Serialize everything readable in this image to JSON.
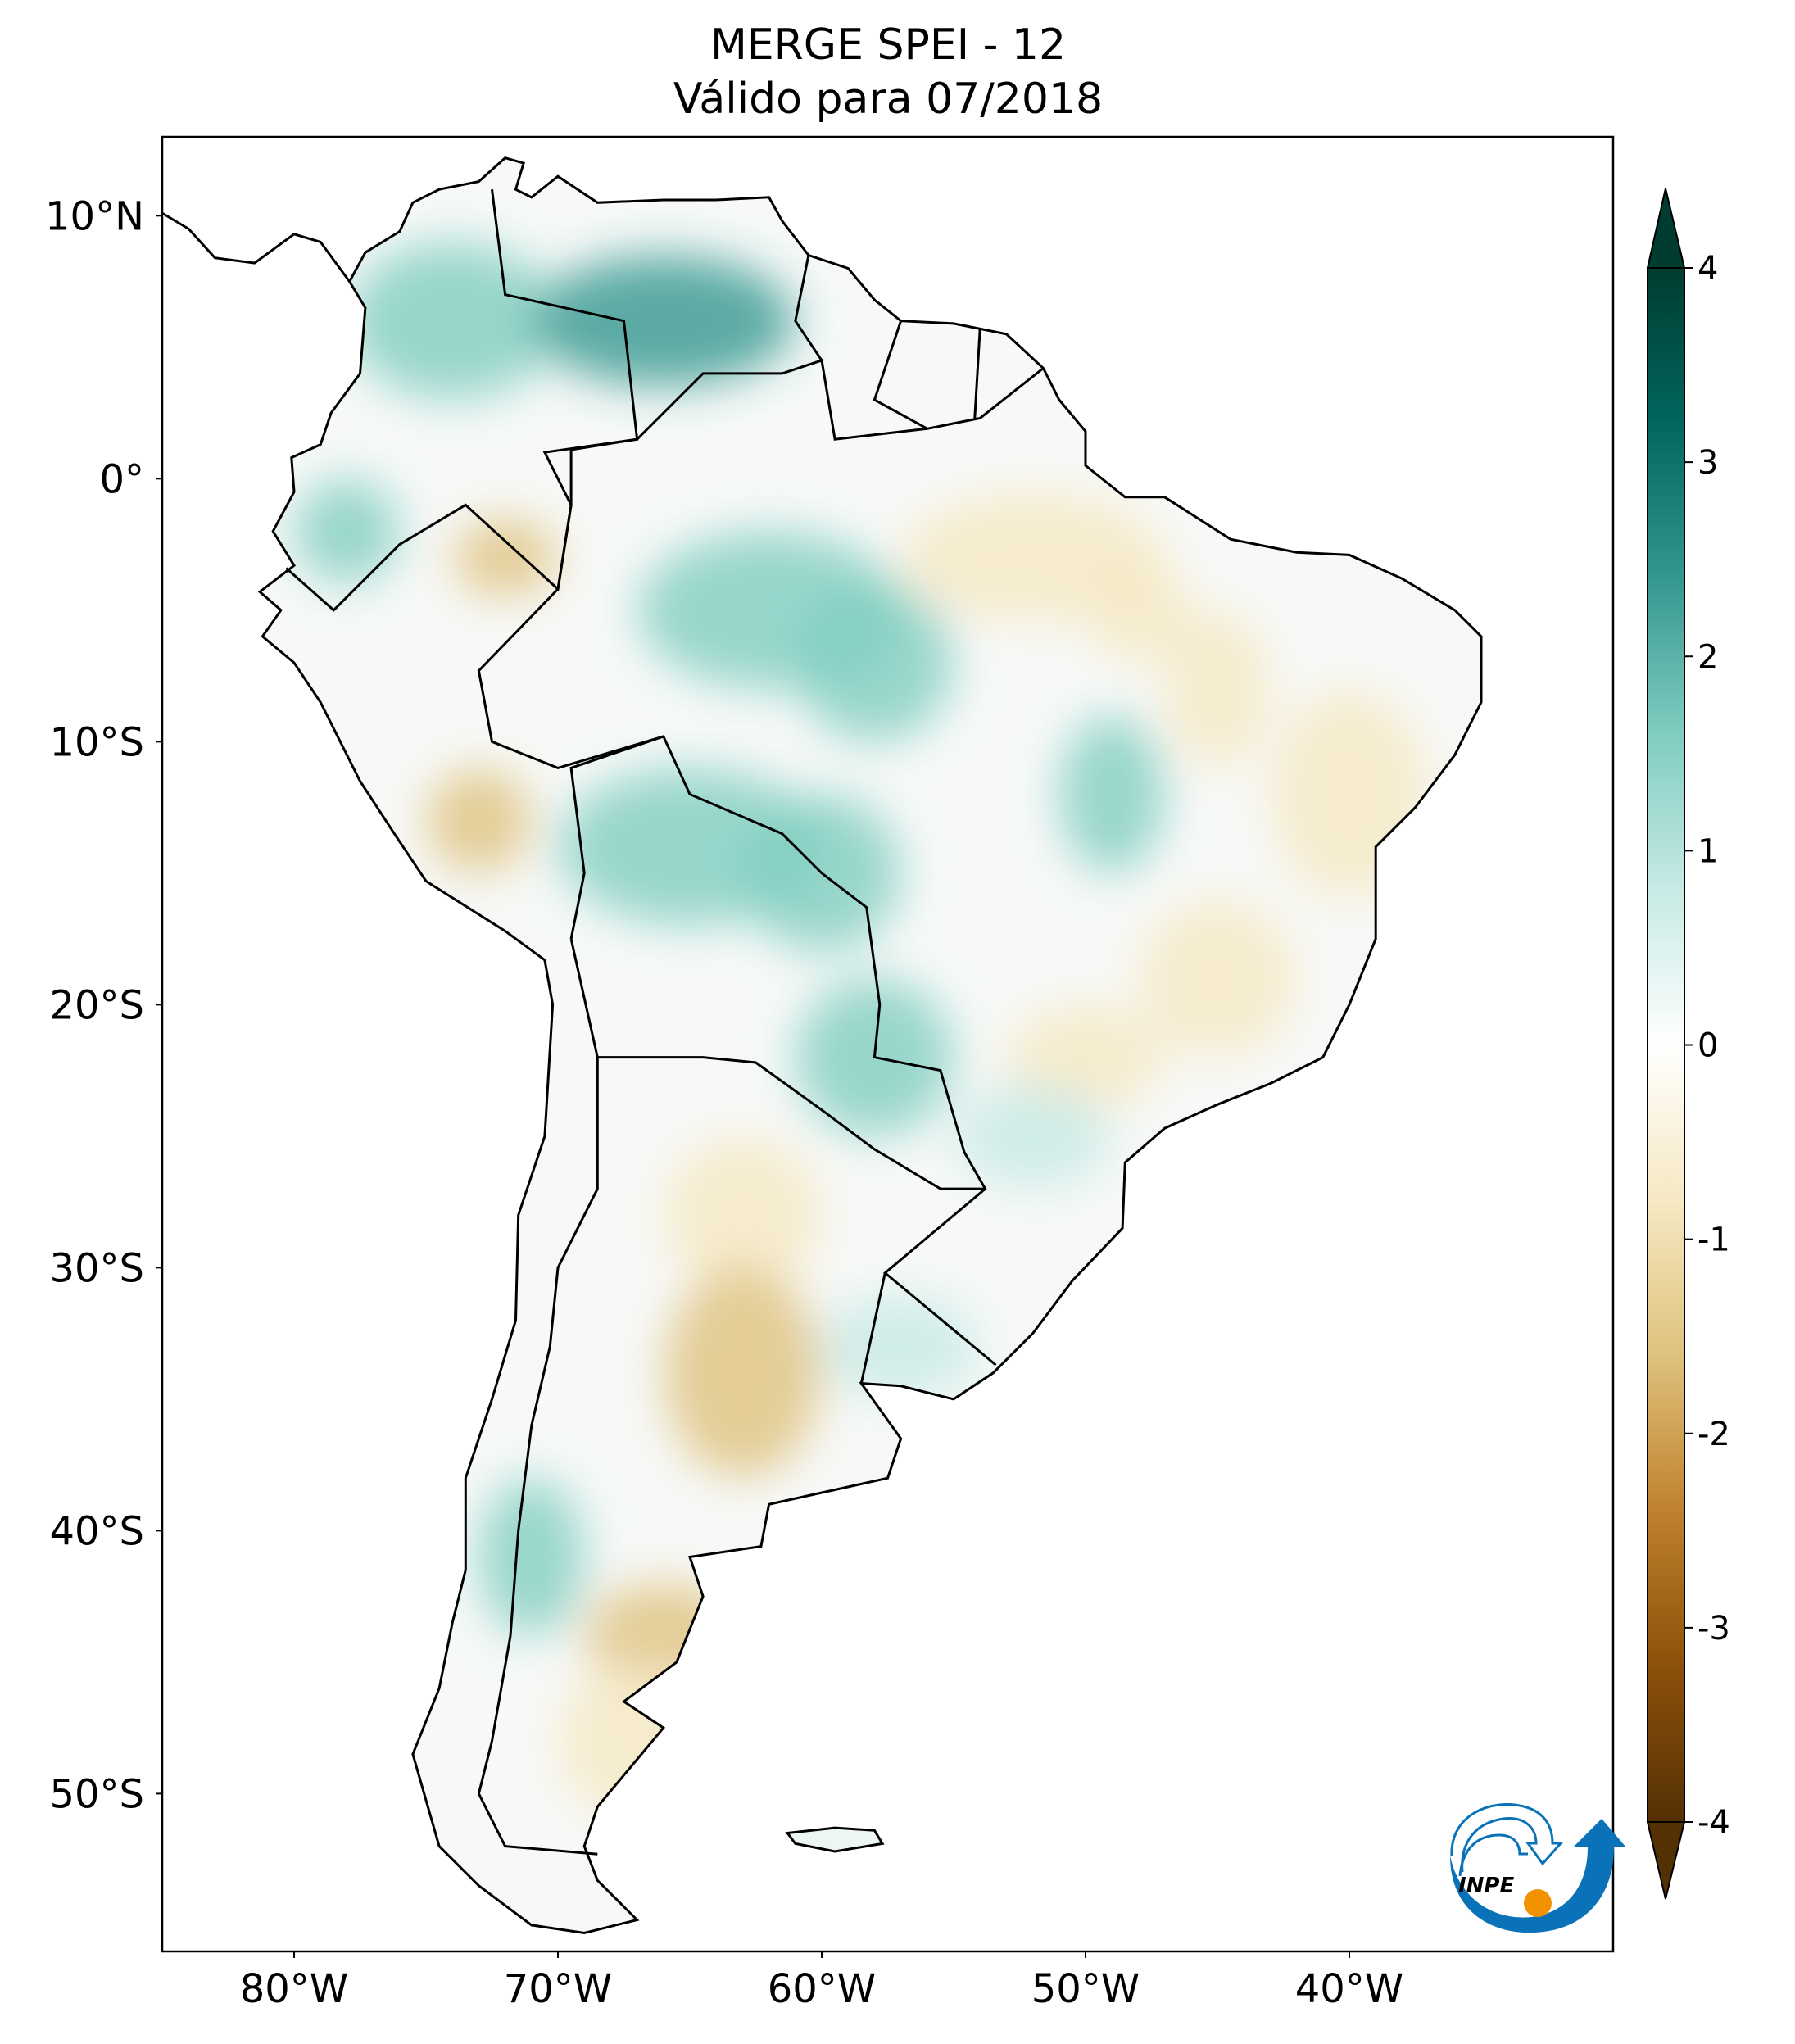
{
  "title": {
    "line1": "MERGE   SPEI - 12",
    "line2": "Válido para 07/2018"
  },
  "map": {
    "projection": "PlateCarree",
    "lon_range": [
      -85,
      -30
    ],
    "lat_range": [
      -56,
      13
    ],
    "lon_ticks": [
      {
        "value": -80,
        "label": "80°W"
      },
      {
        "value": -70,
        "label": "70°W"
      },
      {
        "value": -60,
        "label": "60°W"
      },
      {
        "value": -50,
        "label": "50°W"
      },
      {
        "value": -40,
        "label": "40°W"
      }
    ],
    "lat_ticks": [
      {
        "value": 10,
        "label": "10°N"
      },
      {
        "value": 0,
        "label": "0°"
      },
      {
        "value": -10,
        "label": "10°S"
      },
      {
        "value": -20,
        "label": "20°S"
      },
      {
        "value": -30,
        "label": "30°S"
      },
      {
        "value": -40,
        "label": "40°S"
      },
      {
        "value": -50,
        "label": "50°S"
      }
    ],
    "variable": "SPEI-12",
    "colormap": "BrBG",
    "border_color": "#000000"
  },
  "colorbar": {
    "range": [
      -4,
      4
    ],
    "extend": "both",
    "ticks": [
      {
        "value": 4,
        "label": "4"
      },
      {
        "value": 3,
        "label": "3"
      },
      {
        "value": 2,
        "label": "2"
      },
      {
        "value": 1,
        "label": "1"
      },
      {
        "value": 0,
        "label": "0"
      },
      {
        "value": -1,
        "label": "-1"
      },
      {
        "value": -2,
        "label": "-2"
      },
      {
        "value": -3,
        "label": "-3"
      },
      {
        "value": -4,
        "label": "-4"
      }
    ],
    "colors": [
      "#543005",
      "#8c510a",
      "#bf812d",
      "#dfc27d",
      "#f6e8c3",
      "#ffffff",
      "#c7eae5",
      "#80cdc1",
      "#35978f",
      "#01665e",
      "#003c30"
    ]
  },
  "logo": {
    "text": "INPE",
    "blue": "#0a72b8",
    "orange": "#f39200"
  }
}
